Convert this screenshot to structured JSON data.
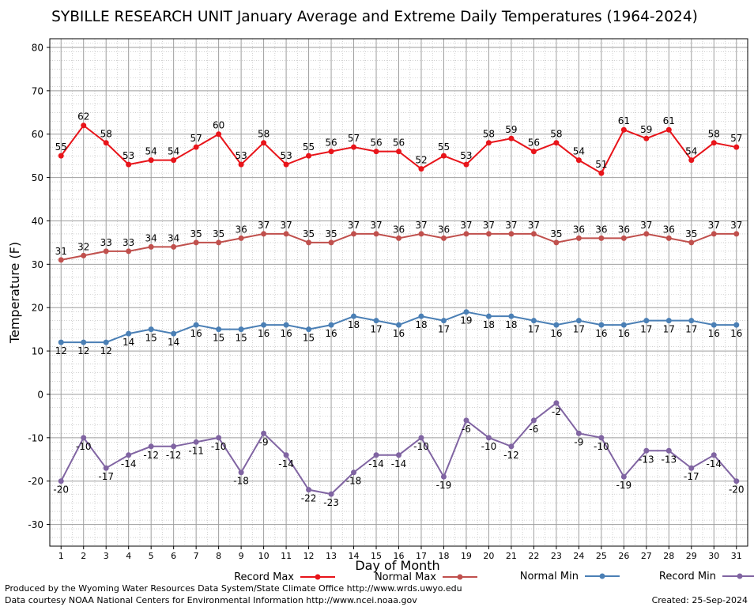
{
  "chart_data": {
    "type": "line",
    "title": "SYBILLE RESEARCH UNIT January Average and Extreme Daily Temperatures (1964-2024)",
    "xlabel": "Day of Month",
    "ylabel": "Temperature (F)",
    "ylim": [
      -35,
      82
    ],
    "yticks": [
      80,
      70,
      60,
      50,
      40,
      30,
      20,
      10,
      0,
      -10,
      -20,
      -30
    ],
    "xlim": [
      0.5,
      31.5
    ],
    "x": [
      1,
      2,
      3,
      4,
      5,
      6,
      7,
      8,
      9,
      10,
      11,
      12,
      13,
      14,
      15,
      16,
      17,
      18,
      19,
      20,
      21,
      22,
      23,
      24,
      25,
      26,
      27,
      28,
      29,
      30,
      31
    ],
    "grid": true,
    "legend_position": "bottom",
    "series": [
      {
        "name": "Record Max",
        "color": "#e8141a",
        "label_pos": "above",
        "values": [
          55,
          62,
          58,
          53,
          54,
          54,
          57,
          60,
          53,
          58,
          53,
          55,
          56,
          57,
          56,
          56,
          52,
          55,
          53,
          58,
          59,
          56,
          58,
          54,
          51,
          61,
          59,
          61,
          54,
          58,
          57
        ]
      },
      {
        "name": "Normal Max",
        "color": "#c0504d",
        "label_pos": "above",
        "values": [
          31,
          32,
          33,
          33,
          34,
          34,
          35,
          35,
          36,
          37,
          37,
          35,
          35,
          37,
          37,
          36,
          37,
          36,
          37,
          37,
          37,
          37,
          35,
          36,
          36,
          36,
          37,
          36,
          35,
          37,
          37
        ]
      },
      {
        "name": "Normal Min",
        "color": "#4a7fb5",
        "label_pos": "below",
        "values": [
          12,
          12,
          12,
          14,
          15,
          14,
          16,
          15,
          15,
          16,
          16,
          15,
          16,
          18,
          17,
          16,
          18,
          17,
          19,
          18,
          18,
          17,
          16,
          17,
          16,
          16,
          17,
          17,
          17,
          16,
          16
        ]
      },
      {
        "name": "Record Min",
        "color": "#8064a2",
        "label_pos": "below",
        "values": [
          -20,
          -10,
          -17,
          -14,
          -12,
          -12,
          -11,
          -10,
          -18,
          -9,
          -14,
          -22,
          -23,
          -18,
          -14,
          -14,
          -10,
          -19,
          -6,
          -10,
          -12,
          -6,
          -2,
          -9,
          -10,
          -19,
          -13,
          -13,
          -17,
          -14,
          -20
        ]
      }
    ]
  },
  "footer": {
    "line1": "Produced by the Wyoming Water Resources Data System/State Climate Office http://www.wrds.uwyo.edu",
    "line2": "Data courtesy NOAA National Centers for Environmental Information http://www.ncei.noaa.gov",
    "created": "Created:  25-Sep-2024"
  }
}
